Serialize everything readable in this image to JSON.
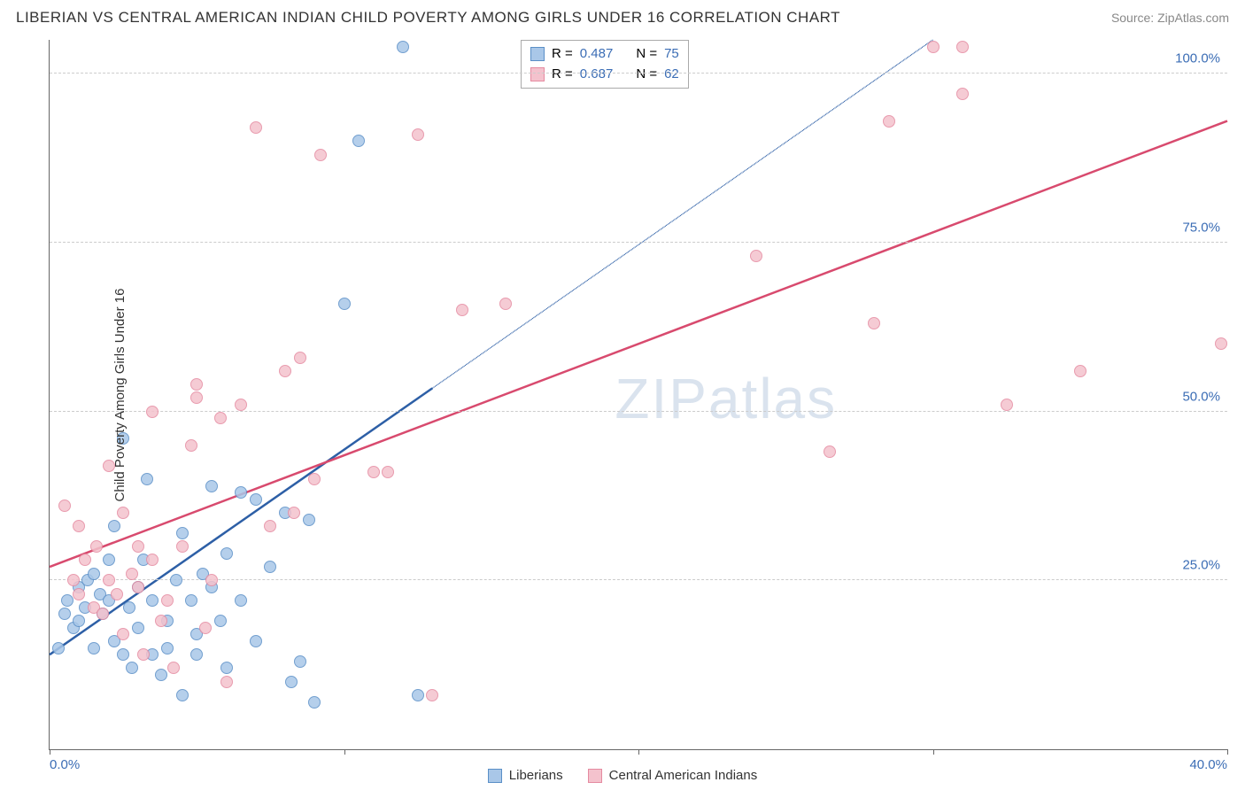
{
  "title": "LIBERIAN VS CENTRAL AMERICAN INDIAN CHILD POVERTY AMONG GIRLS UNDER 16 CORRELATION CHART",
  "source_label": "Source: ZipAtlas.com",
  "ylabel": "Child Poverty Among Girls Under 16",
  "watermark_part1": "ZIP",
  "watermark_part2": "atlas",
  "chart": {
    "type": "scatter",
    "xlim": [
      0,
      40
    ],
    "ylim": [
      0,
      105
    ],
    "xmin_label": "0.0%",
    "xmax_label": "40.0%",
    "yticks": [
      25,
      50,
      75,
      100
    ],
    "ytick_labels": [
      "25.0%",
      "50.0%",
      "75.0%",
      "100.0%"
    ],
    "xtick_positions": [
      0,
      10,
      20,
      30,
      40
    ],
    "ytick_color": "#3b6db5",
    "xlabel_color": "#3b6db5",
    "grid_color": "#cccccc",
    "axis_color": "#666666",
    "background_color": "#ffffff",
    "series": [
      {
        "name": "Liberians",
        "fill": "#a9c7e8",
        "stroke": "#5a8fc7",
        "line_color": "#2d5fa6",
        "line_solid_to_x": 13,
        "trend": {
          "x1": 0,
          "y1": 14,
          "x2": 30,
          "y2": 105
        },
        "R": "0.487",
        "N": "75",
        "points": [
          [
            0.3,
            15
          ],
          [
            0.5,
            20
          ],
          [
            0.6,
            22
          ],
          [
            0.8,
            18
          ],
          [
            1.0,
            24
          ],
          [
            1.0,
            19
          ],
          [
            1.2,
            21
          ],
          [
            1.3,
            25
          ],
          [
            1.5,
            15
          ],
          [
            1.5,
            26
          ],
          [
            1.7,
            23
          ],
          [
            1.8,
            20
          ],
          [
            2.0,
            22
          ],
          [
            2.0,
            28
          ],
          [
            2.2,
            16
          ],
          [
            2.2,
            33
          ],
          [
            2.5,
            14
          ],
          [
            2.5,
            46
          ],
          [
            2.7,
            21
          ],
          [
            2.8,
            12
          ],
          [
            3.0,
            24
          ],
          [
            3.0,
            18
          ],
          [
            3.2,
            28
          ],
          [
            3.3,
            40
          ],
          [
            3.5,
            14
          ],
          [
            3.5,
            22
          ],
          [
            3.8,
            11
          ],
          [
            4.0,
            19
          ],
          [
            4.0,
            15
          ],
          [
            4.3,
            25
          ],
          [
            4.5,
            32
          ],
          [
            4.5,
            8
          ],
          [
            4.8,
            22
          ],
          [
            5.0,
            17
          ],
          [
            5.0,
            14
          ],
          [
            5.2,
            26
          ],
          [
            5.5,
            39
          ],
          [
            5.5,
            24
          ],
          [
            5.8,
            19
          ],
          [
            6.0,
            12
          ],
          [
            6.0,
            29
          ],
          [
            6.5,
            38
          ],
          [
            6.5,
            22
          ],
          [
            7.0,
            16
          ],
          [
            7.0,
            37
          ],
          [
            7.5,
            27
          ],
          [
            8.0,
            35
          ],
          [
            8.2,
            10
          ],
          [
            8.5,
            13
          ],
          [
            8.8,
            34
          ],
          [
            9.0,
            7
          ],
          [
            10.0,
            66
          ],
          [
            10.5,
            90
          ],
          [
            12.0,
            104
          ],
          [
            12.5,
            8
          ]
        ]
      },
      {
        "name": "Central American Indians",
        "fill": "#f4c2cd",
        "stroke": "#e58aa0",
        "line_color": "#d84a6e",
        "line_solid_to_x": 40,
        "trend": {
          "x1": 0,
          "y1": 27,
          "x2": 40,
          "y2": 93
        },
        "R": "0.687",
        "N": "62",
        "points": [
          [
            0.5,
            36
          ],
          [
            0.8,
            25
          ],
          [
            1.0,
            23
          ],
          [
            1.0,
            33
          ],
          [
            1.2,
            28
          ],
          [
            1.5,
            21
          ],
          [
            1.6,
            30
          ],
          [
            1.8,
            20
          ],
          [
            2.0,
            25
          ],
          [
            2.0,
            42
          ],
          [
            2.3,
            23
          ],
          [
            2.5,
            35
          ],
          [
            2.5,
            17
          ],
          [
            2.8,
            26
          ],
          [
            3.0,
            24
          ],
          [
            3.0,
            30
          ],
          [
            3.2,
            14
          ],
          [
            3.5,
            50
          ],
          [
            3.5,
            28
          ],
          [
            3.8,
            19
          ],
          [
            4.0,
            22
          ],
          [
            4.2,
            12
          ],
          [
            4.5,
            30
          ],
          [
            4.8,
            45
          ],
          [
            5.0,
            54
          ],
          [
            5.0,
            52
          ],
          [
            5.3,
            18
          ],
          [
            5.5,
            25
          ],
          [
            5.8,
            49
          ],
          [
            6.0,
            10
          ],
          [
            6.5,
            51
          ],
          [
            7.0,
            92
          ],
          [
            7.5,
            33
          ],
          [
            8.0,
            56
          ],
          [
            8.3,
            35
          ],
          [
            8.5,
            58
          ],
          [
            9.0,
            40
          ],
          [
            9.2,
            88
          ],
          [
            11.0,
            41
          ],
          [
            11.5,
            41
          ],
          [
            12.5,
            91
          ],
          [
            13.0,
            8
          ],
          [
            14.0,
            65
          ],
          [
            15.5,
            66
          ],
          [
            24.0,
            73
          ],
          [
            26.5,
            44
          ],
          [
            28.0,
            63
          ],
          [
            28.5,
            93
          ],
          [
            30.0,
            104
          ],
          [
            31.0,
            104
          ],
          [
            31.0,
            97
          ],
          [
            32.5,
            51
          ],
          [
            35.0,
            56
          ],
          [
            39.8,
            60
          ]
        ]
      }
    ]
  },
  "stats_box": {
    "rows": [
      {
        "swatch_fill": "#a9c7e8",
        "swatch_stroke": "#5a8fc7",
        "R_label": "R =",
        "R": "0.487",
        "N_label": "N =",
        "N": "75"
      },
      {
        "swatch_fill": "#f4c2cd",
        "swatch_stroke": "#e58aa0",
        "R_label": "R =",
        "R": "0.687",
        "N_label": "N =",
        "N": "62"
      }
    ]
  },
  "bottom_legend": [
    {
      "swatch_fill": "#a9c7e8",
      "swatch_stroke": "#5a8fc7",
      "label": "Liberians"
    },
    {
      "swatch_fill": "#f4c2cd",
      "swatch_stroke": "#e58aa0",
      "label": "Central American Indians"
    }
  ]
}
